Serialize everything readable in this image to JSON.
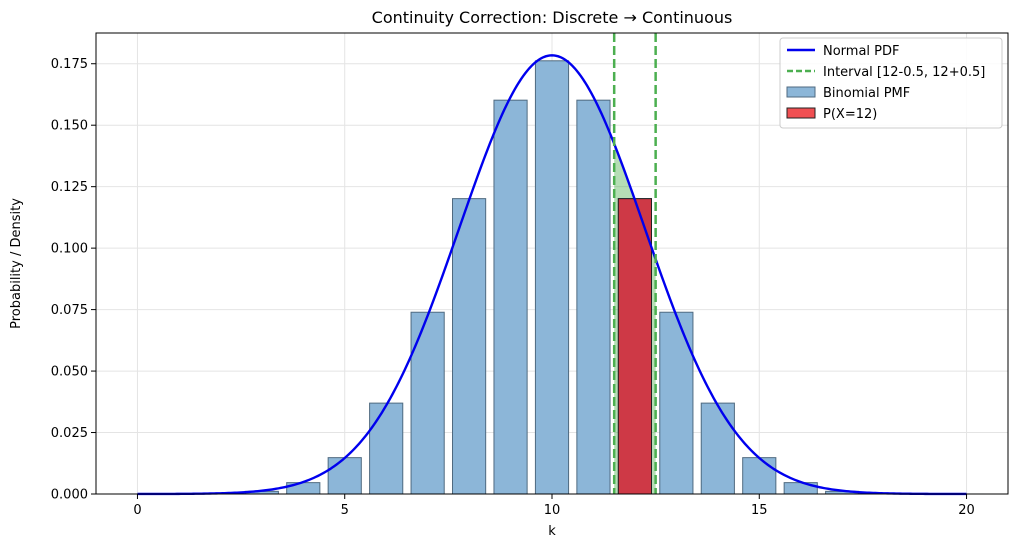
{
  "chart_data": {
    "type": "bar",
    "title": "Continuity Correction: Discrete → Continuous",
    "xlabel": "k",
    "ylabel": "Probability / Density",
    "xlim": [
      -1.0,
      21.0
    ],
    "ylim": [
      0.0,
      0.1875
    ],
    "grid": true,
    "x_ticks": [
      0,
      5,
      10,
      15,
      20
    ],
    "x_tick_labels": [
      "0",
      "5",
      "10",
      "15",
      "20"
    ],
    "y_ticks": [
      0.0,
      0.025,
      0.05,
      0.075,
      0.1,
      0.125,
      0.15,
      0.175
    ],
    "y_tick_labels": [
      "0.000",
      "0.025",
      "0.050",
      "0.075",
      "0.100",
      "0.125",
      "0.150",
      "0.175"
    ],
    "binomial": {
      "name": "Binomial PMF",
      "color": "#1f77b4",
      "n": 20,
      "p": 0.5,
      "k": [
        0,
        1,
        2,
        3,
        4,
        5,
        6,
        7,
        8,
        9,
        10,
        11,
        12,
        13,
        14,
        15,
        16,
        17,
        18,
        19,
        20
      ],
      "values": [
        1e-06,
        1.9e-05,
        0.000181,
        0.001087,
        0.004621,
        0.014786,
        0.036964,
        0.073929,
        0.120134,
        0.160179,
        0.176197,
        0.160179,
        0.120134,
        0.073929,
        0.036964,
        0.014786,
        0.004621,
        0.001087,
        0.000181,
        1.9e-05,
        1e-06
      ]
    },
    "normal": {
      "name": "Normal PDF",
      "color": "#0000ee",
      "mean": 10,
      "sd": 2.2360679775,
      "x_range": [
        0,
        20
      ]
    },
    "highlight": {
      "name": "P(X=12)",
      "k": 12,
      "value": 0.120134,
      "color": "#e8090e"
    },
    "interval": {
      "name": "Interval [12-0.5, 12+0.5]",
      "lower": 11.5,
      "upper": 12.5,
      "color": "#2ca02c"
    },
    "legend_position": "top-right"
  }
}
